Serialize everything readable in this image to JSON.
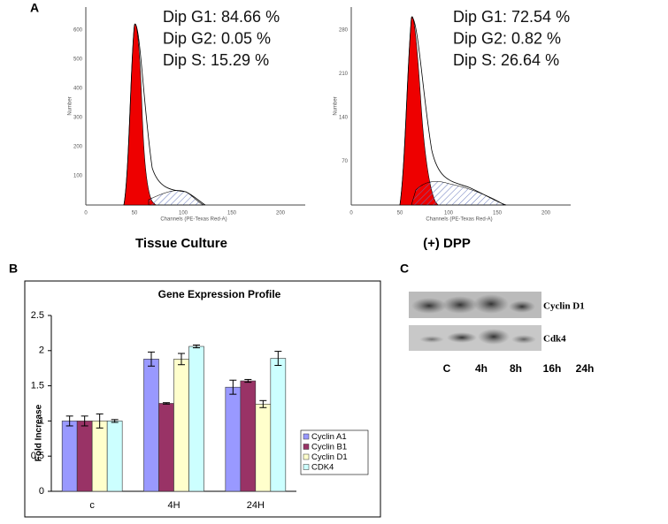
{
  "panel_a": {
    "label": "A",
    "left": {
      "stats": [
        "Dip G1: 84.66 %",
        "Dip G2: 0.05 %",
        "Dip S: 15.29 %"
      ],
      "x_label": "Channels (PE-Texas Red-A)",
      "y_label": "Number",
      "xticks": [
        "0",
        "50",
        "100",
        "150",
        "200"
      ],
      "yticks": [
        "100",
        "200",
        "300",
        "400",
        "500",
        "600"
      ],
      "caption": "Tissue Culture"
    },
    "right": {
      "stats": [
        "Dip G1: 72.54 %",
        "Dip G2: 0.82 %",
        "Dip S: 26.64 %"
      ],
      "x_label": "Channels (PE-Texas Red-A)",
      "y_label": "Number",
      "xticks": [
        "0",
        "50",
        "100",
        "150",
        "200"
      ],
      "yticks": [
        "70",
        "140",
        "210",
        "280"
      ],
      "caption": "(+) DPP"
    }
  },
  "panel_b": {
    "label": "B"
  },
  "chart_data": {
    "type": "bar",
    "title": "Gene Expression Profile",
    "y_label": "Fold Increase",
    "categories": [
      "c",
      "4H",
      "24H"
    ],
    "series": [
      {
        "name": "Cyclin A1",
        "color": "#9999ff",
        "values": [
          1.0,
          1.88,
          1.48
        ],
        "errors": [
          0.07,
          0.1,
          0.1
        ]
      },
      {
        "name": "Cyclin B1",
        "color": "#993366",
        "values": [
          1.0,
          1.25,
          1.57
        ],
        "errors": [
          0.07,
          0.01,
          0.02
        ]
      },
      {
        "name": "Cyclin D1",
        "color": "#ffffcc",
        "values": [
          1.0,
          1.88,
          1.24
        ],
        "errors": [
          0.1,
          0.08,
          0.05
        ]
      },
      {
        "name": "CDK4",
        "color": "#ccffff",
        "values": [
          1.0,
          2.06,
          1.89
        ],
        "errors": [
          0.02,
          0.02,
          0.1
        ]
      }
    ],
    "ylim": [
      0,
      2.5
    ],
    "yticks": [
      0,
      0.5,
      1,
      1.5,
      2,
      2.5
    ],
    "legend": "right"
  },
  "panel_c": {
    "label": "C",
    "rows": [
      "Cyclin D1",
      "Cdk4"
    ],
    "lanes": [
      "C",
      "4h",
      "8h",
      "16h",
      "24h"
    ]
  }
}
